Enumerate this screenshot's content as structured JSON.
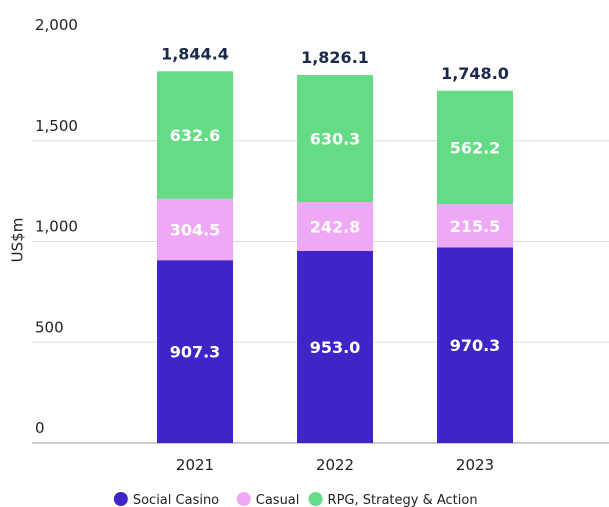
{
  "chart_data": {
    "type": "stacked_bar",
    "y_label": "US$m",
    "categories": [
      "2021",
      "2022",
      "2023"
    ],
    "series": [
      {
        "name": "Social Casino",
        "color": "#3d25c8",
        "values": [
          907.3,
          953.0,
          970.3
        ],
        "value_labels": [
          "907.3",
          "953.0",
          "970.3"
        ]
      },
      {
        "name": "Casual",
        "color": "#eea8f5",
        "values": [
          304.5,
          242.8,
          215.5
        ],
        "value_labels": [
          "304.5",
          "242.8",
          "215.5"
        ]
      },
      {
        "name": "RPG, Strategy & Action",
        "color": "#66db86",
        "values": [
          632.6,
          630.3,
          562.2
        ],
        "value_labels": [
          "632.6",
          "630.3",
          "562.2"
        ]
      }
    ],
    "total_labels": [
      "1,844.4",
      "1,826.1",
      "1,748.0"
    ],
    "ylim": [
      0,
      2000
    ],
    "yticks": [
      0,
      500,
      {
        "value": 1000,
        "label": "1,000"
      },
      {
        "value": 1500,
        "label": "1,500"
      },
      {
        "value": 2000,
        "label": "2,000"
      }
    ],
    "grid": true,
    "legend": "bottom"
  }
}
